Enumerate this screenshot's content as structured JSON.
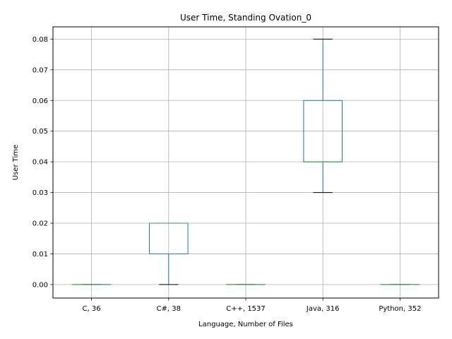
{
  "chart_data": {
    "type": "box",
    "title": "User Time, Standing Ovation_0",
    "xlabel": "Language, Number of Files",
    "ylabel": "User Time",
    "ylim": [
      -0.0044,
      0.084
    ],
    "yticks": [
      0.0,
      0.01,
      0.02,
      0.03,
      0.04,
      0.05,
      0.06,
      0.07,
      0.08
    ],
    "ytick_labels": [
      "0.00",
      "0.01",
      "0.02",
      "0.03",
      "0.04",
      "0.05",
      "0.06",
      "0.07",
      "0.08"
    ],
    "grid": true,
    "categories": [
      "C, 36",
      "C#, 38",
      "C++, 1537",
      "Java, 316",
      "Python, 352"
    ],
    "boxes": [
      {
        "whisker_low": 0.0,
        "q1": 0.0,
        "median": 0.0,
        "q3": 0.0,
        "whisker_high": 0.0
      },
      {
        "whisker_low": 0.0,
        "q1": 0.01,
        "median": 0.02,
        "q3": 0.02,
        "whisker_high": 0.02
      },
      {
        "whisker_low": 0.0,
        "q1": 0.0,
        "median": 0.0,
        "q3": 0.0,
        "whisker_high": 0.0
      },
      {
        "whisker_low": 0.03,
        "q1": 0.04,
        "median": 0.04,
        "q3": 0.06,
        "whisker_high": 0.08
      },
      {
        "whisker_low": 0.0,
        "q1": 0.0,
        "median": 0.0,
        "q3": 0.0,
        "whisker_high": 0.0
      }
    ],
    "colors": {
      "box": "#1f77b4",
      "median": "#2ca02c",
      "whisker_cap": "#000000",
      "grid": "#b0b0b0",
      "axis": "#000000"
    }
  }
}
